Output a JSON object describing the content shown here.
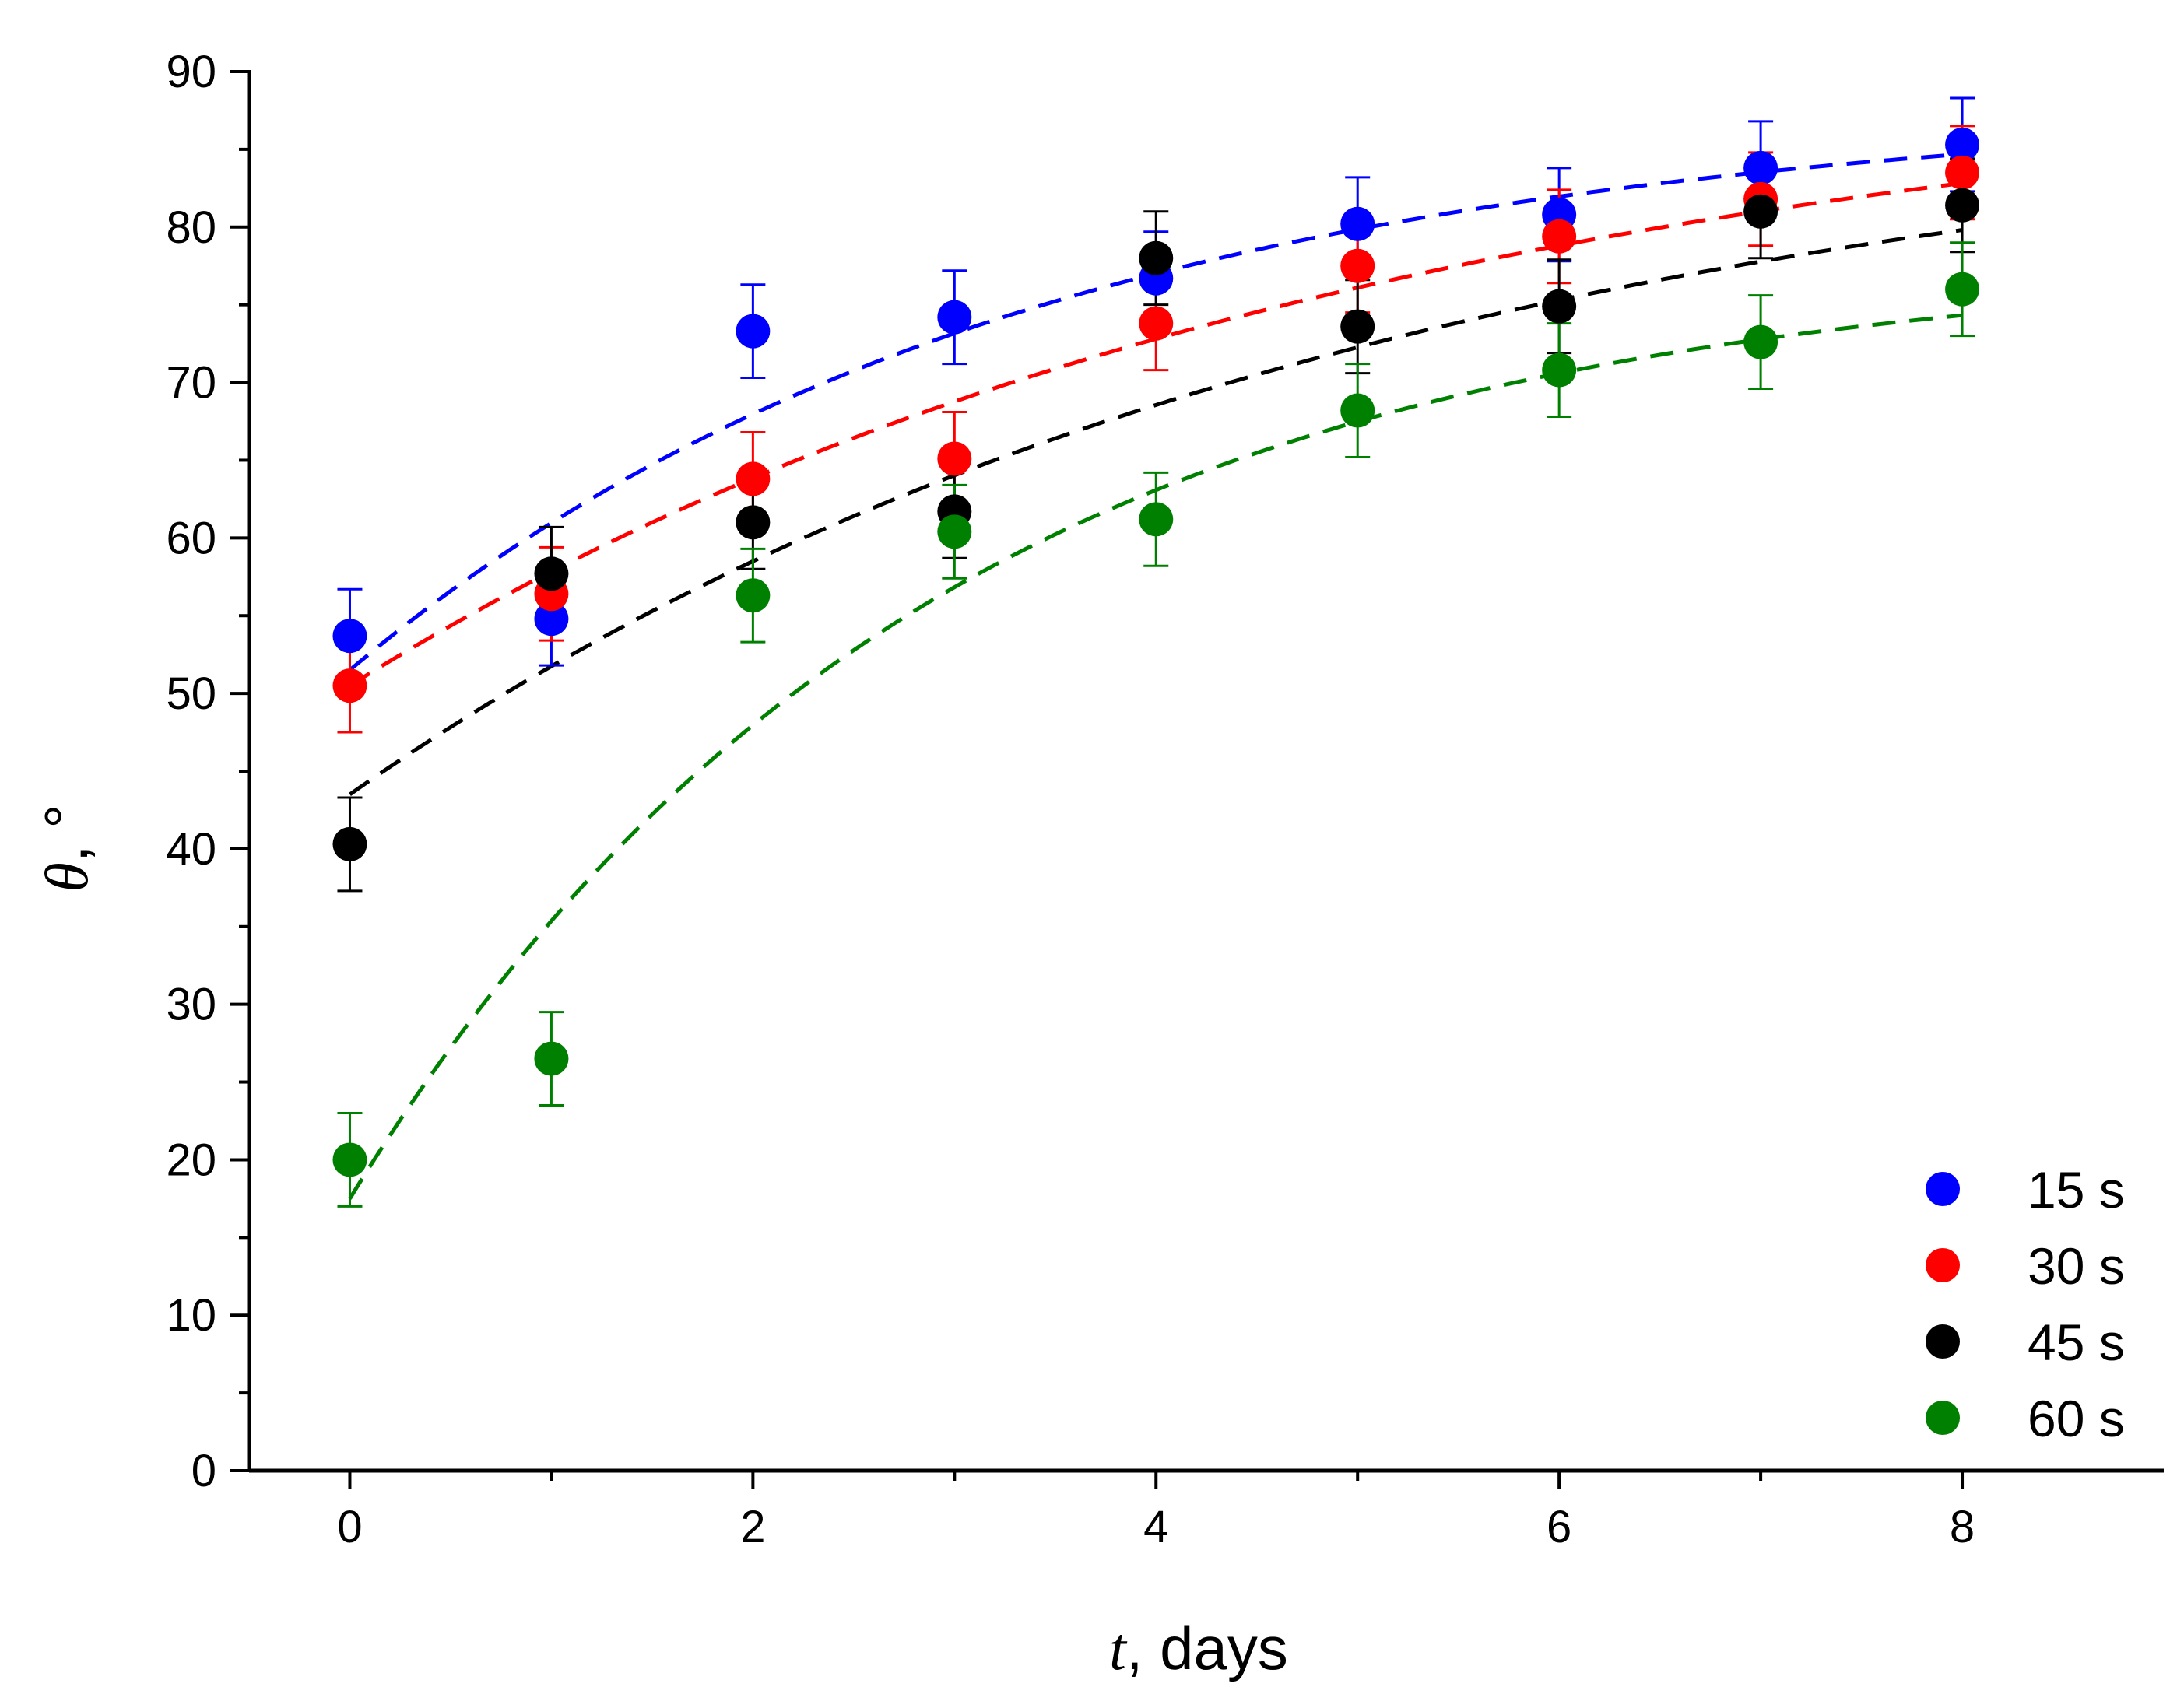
{
  "chart_data": {
    "type": "scatter",
    "title": "",
    "xlabel": {
      "symbol": "t",
      "rest": ", days"
    },
    "ylabel": {
      "symbol": "θ",
      "rest": ", °"
    },
    "xlim": [
      -0.5,
      9
    ],
    "ylim": [
      0,
      90
    ],
    "x_ticks": [
      0,
      2,
      4,
      6,
      8
    ],
    "x_tick_labels": [
      "0",
      "2",
      "4",
      "6",
      "8"
    ],
    "y_ticks": [
      0,
      10,
      20,
      30,
      40,
      50,
      60,
      70,
      80,
      90
    ],
    "y_tick_labels": [
      "0",
      "10",
      "20",
      "30",
      "40",
      "50",
      "60",
      "70",
      "80",
      "90"
    ],
    "legend_position": "bottom-right",
    "series": [
      {
        "name": "15 s",
        "color": "#0000ff",
        "x": [
          0,
          1,
          2,
          3,
          4,
          5,
          6,
          7,
          8
        ],
        "y": [
          53.7,
          54.8,
          73.3,
          74.2,
          76.7,
          80.2,
          80.8,
          83.8,
          85.3
        ],
        "error": [
          3,
          3,
          3,
          3,
          3,
          3,
          3,
          3,
          3
        ],
        "fit": {
          "y0": 51.5,
          "plateau": 88.0,
          "k": 0.3
        }
      },
      {
        "name": "30 s",
        "color": "#ff0000",
        "x": [
          0,
          1,
          2,
          3,
          4,
          5,
          6,
          7,
          8
        ],
        "y": [
          50.5,
          56.4,
          63.8,
          65.1,
          73.8,
          77.5,
          79.4,
          81.8,
          83.5
        ],
        "error": [
          3,
          3,
          3,
          3,
          3,
          3,
          3,
          3,
          3
        ],
        "fit": {
          "y0": 50.5,
          "plateau": 91.0,
          "k": 0.2
        }
      },
      {
        "name": "45 s",
        "color": "#000000",
        "x": [
          0,
          1,
          2,
          3,
          4,
          5,
          6,
          7,
          8
        ],
        "y": [
          40.3,
          57.7,
          61.0,
          61.7,
          78.0,
          73.6,
          74.9,
          81.0,
          81.4
        ],
        "error": [
          3,
          3,
          3,
          3,
          3,
          3,
          3,
          3,
          3
        ],
        "fit": {
          "y0": 43.5,
          "plateau": 89.0,
          "k": 0.2
        }
      },
      {
        "name": "60 s",
        "color": "#008000",
        "x": [
          0,
          1,
          2,
          3,
          4,
          5,
          6,
          7,
          8
        ],
        "y": [
          20.0,
          26.5,
          56.3,
          60.4,
          61.2,
          68.2,
          70.8,
          72.6,
          76.0
        ],
        "error": [
          3,
          3,
          3,
          3,
          3,
          3,
          3,
          3,
          3
        ],
        "fit": {
          "y0": 17.5,
          "plateau": 78.0,
          "k": 0.35
        }
      }
    ]
  }
}
